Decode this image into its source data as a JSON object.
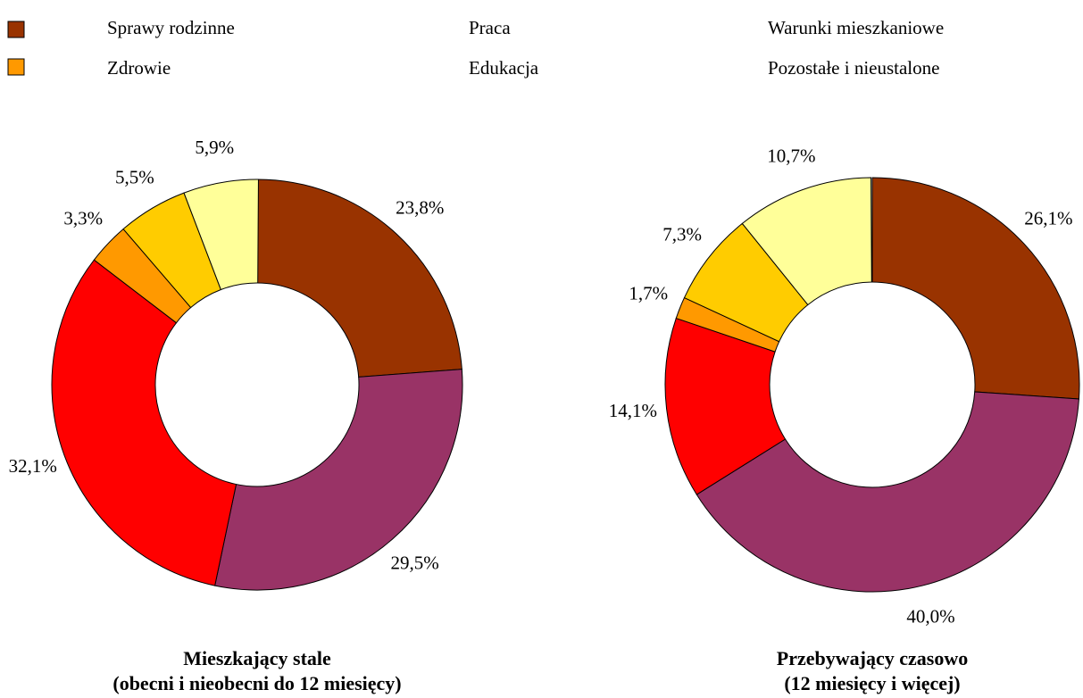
{
  "chart_data": [
    {
      "type": "pie",
      "title": "Mieszkający stale",
      "subtitle": "(obecni i nieobecni do 12 miesięcy)",
      "categories": [
        "Sprawy rodzinne",
        "Praca",
        "Warunki mieszkaniowe",
        "Zdrowie",
        "Edukacja",
        "Pozostałe i nieustalone"
      ],
      "colors": [
        "#993300",
        "#993366",
        "#ff0000",
        "#ff9900",
        "#ffcc00",
        "#ffff99"
      ],
      "values": [
        23.8,
        29.5,
        32.1,
        3.3,
        5.5,
        5.9
      ],
      "value_labels": [
        "23,8%",
        "29,5%",
        "32,1%",
        "3,3%",
        "5,5%",
        "5,9%"
      ]
    },
    {
      "type": "pie",
      "title": "Przebywający czasowo",
      "subtitle": "(12 miesięcy i więcej)",
      "values": [
        26.1,
        40.0,
        14.1,
        1.7,
        7.3,
        10.7
      ],
      "value_labels": [
        "26,1%",
        "40,0%",
        "14,1%",
        "1,7%",
        "7,3%",
        "10,7%"
      ]
    }
  ]
}
